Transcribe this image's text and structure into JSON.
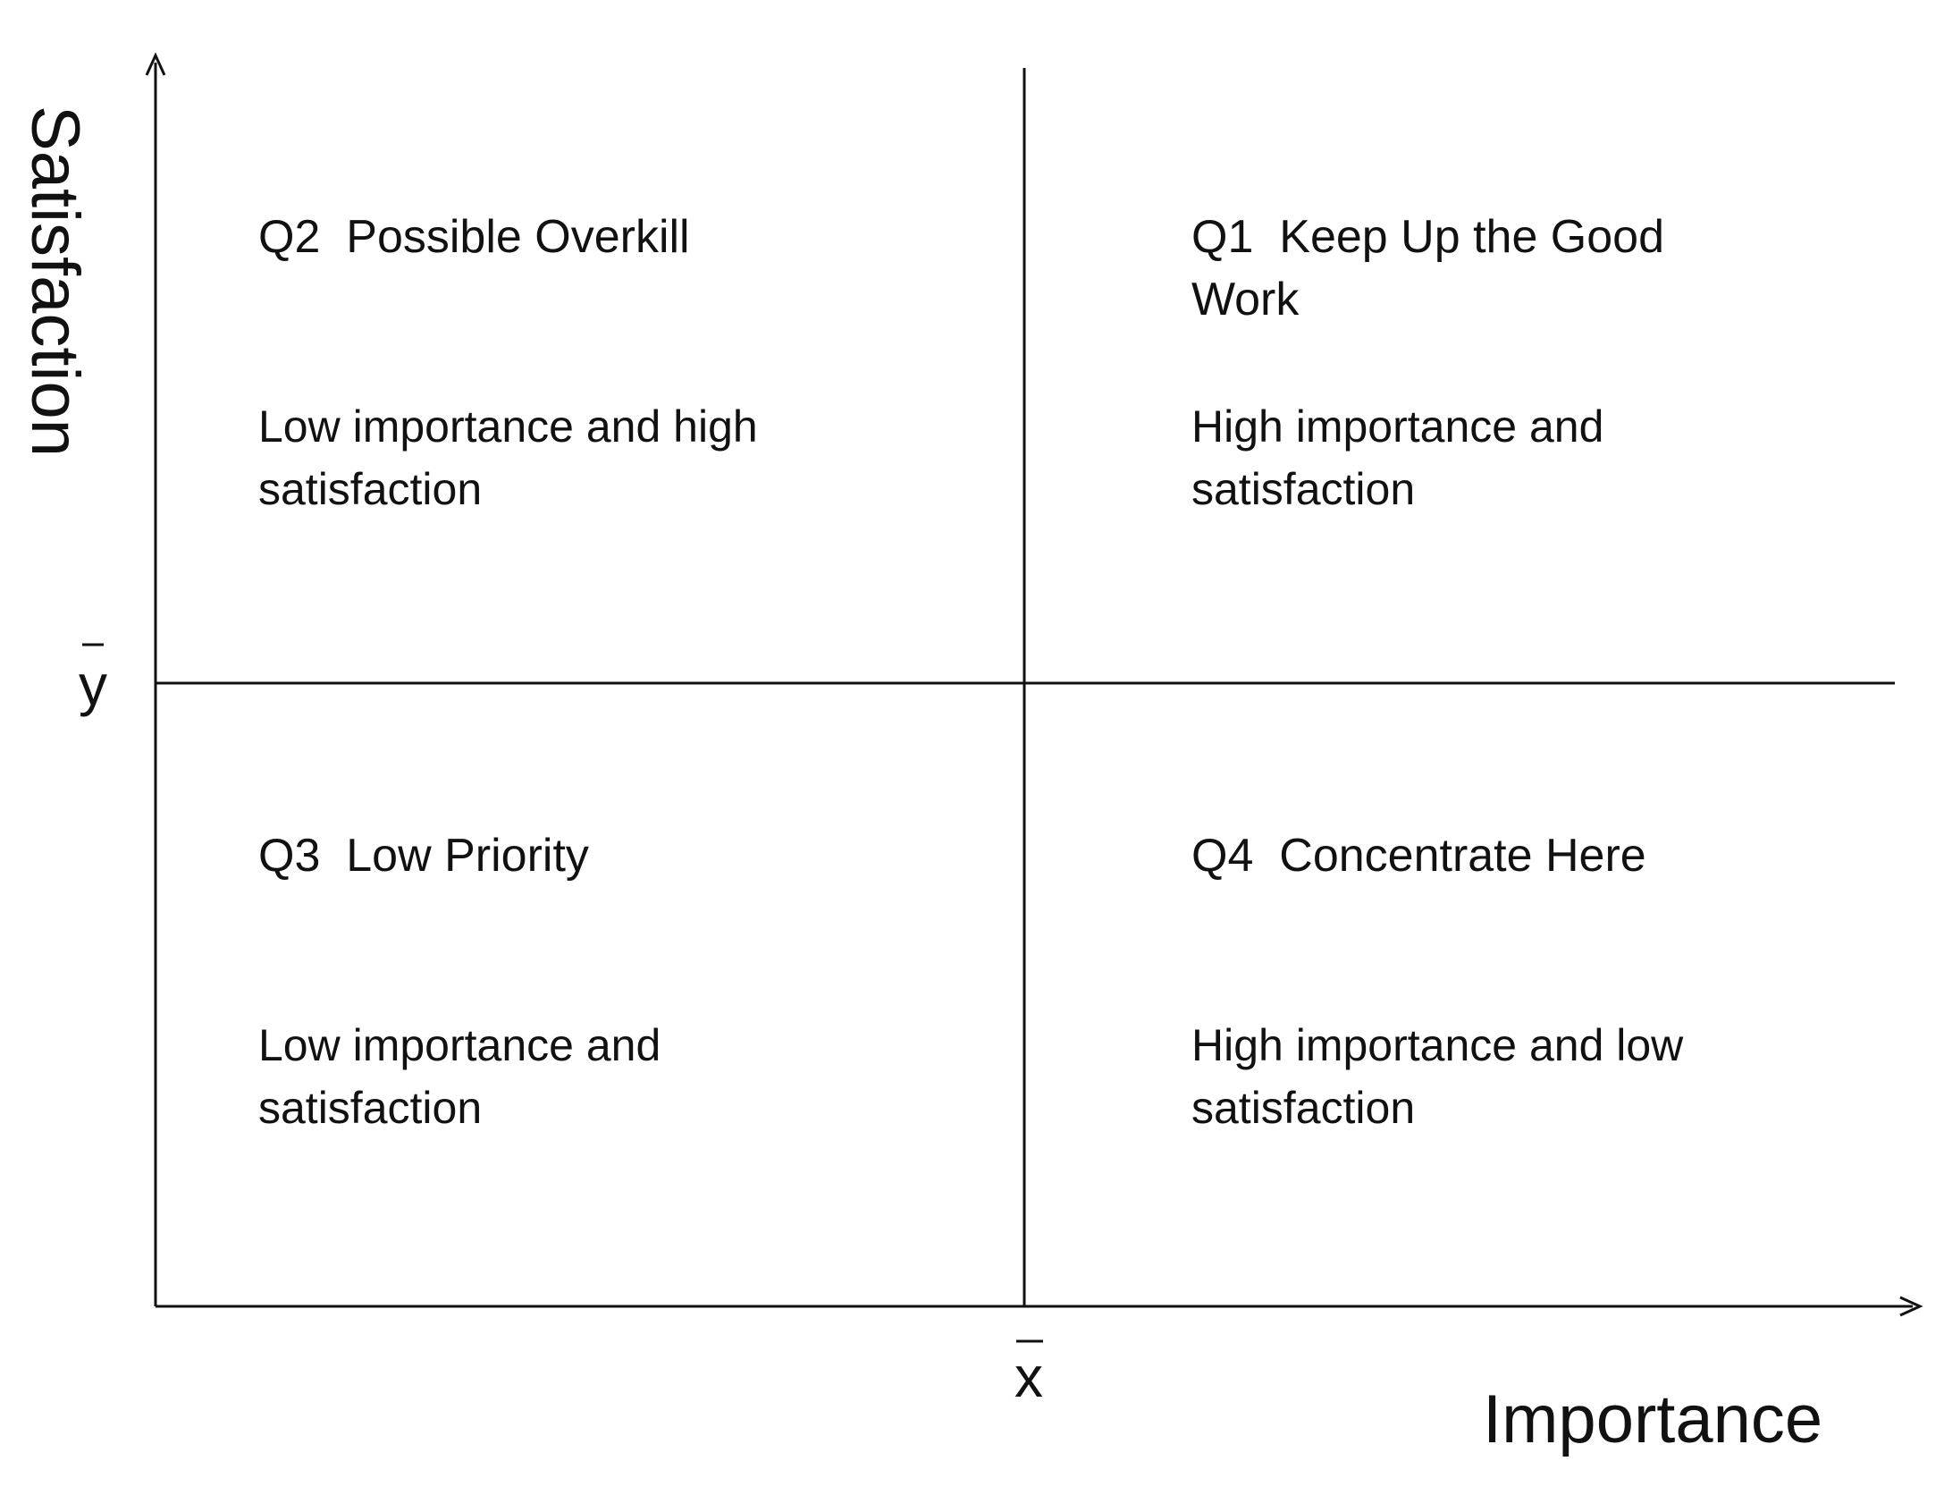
{
  "axes": {
    "y_label": "Satisfaction",
    "x_label": "Importance",
    "y_mean": "y",
    "x_mean": "x"
  },
  "quadrants": [
    {
      "title_lines": [
        "Q2  Possible Overkill"
      ],
      "description_lines": [
        "Low importance and high",
        "satisfaction"
      ]
    },
    {
      "title_lines": [
        "Q1  Keep Up the Good",
        "Work"
      ],
      "description_lines": [
        "High importance and",
        "satisfaction"
      ]
    },
    {
      "title_lines": [
        "Q3  Low Priority"
      ],
      "description_lines": [
        "Low importance and",
        "satisfaction"
      ]
    },
    {
      "title_lines": [
        "Q4  Concentrate Here"
      ],
      "description_lines": [
        "High importance and low",
        "satisfaction"
      ]
    }
  ]
}
